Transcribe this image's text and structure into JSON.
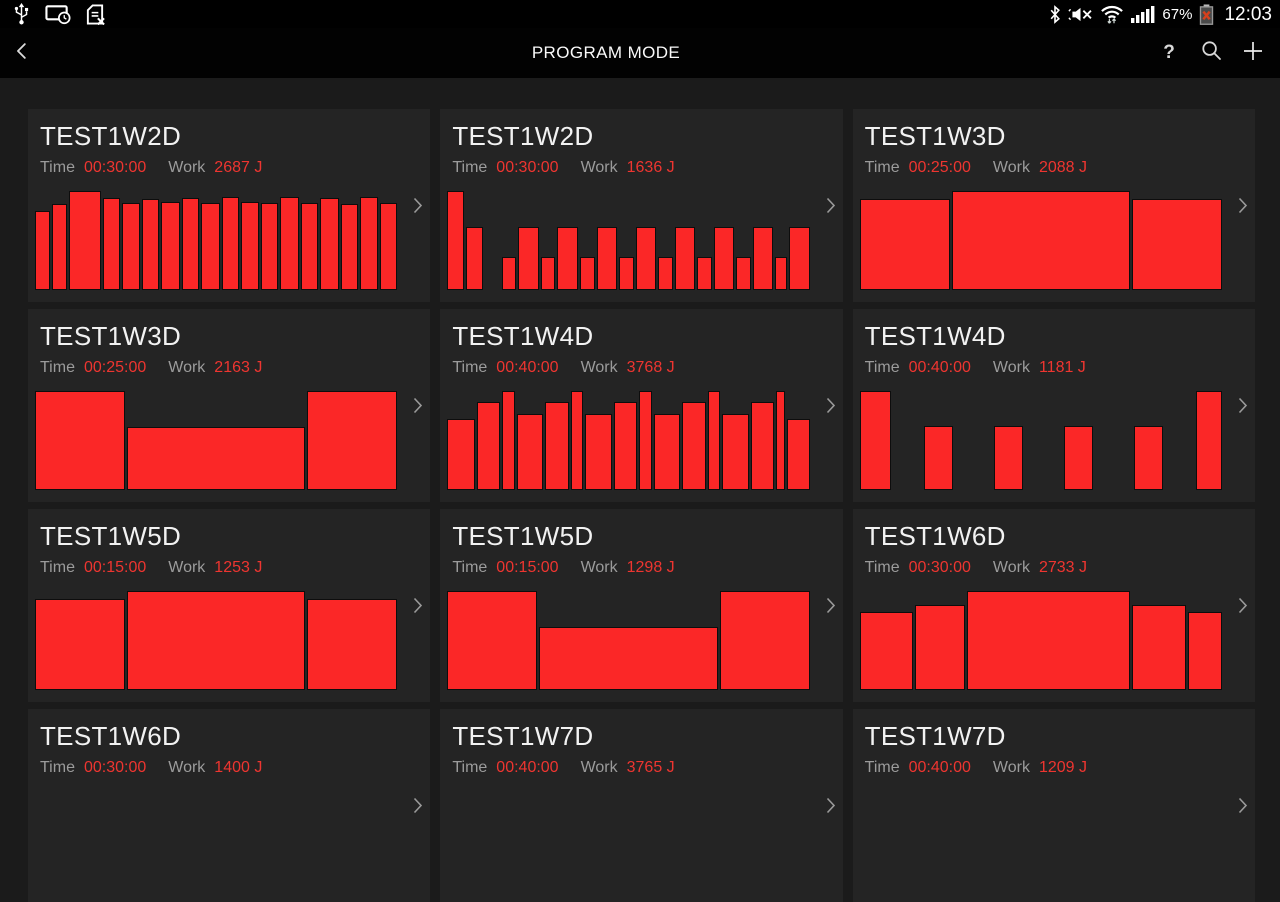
{
  "status_bar": {
    "left_icons": [
      "usb-icon",
      "screen-timeout-icon",
      "no-sim-icon"
    ],
    "right_icons": [
      "bluetooth-icon",
      "mute-icon",
      "wifi-icon",
      "signal-icon"
    ],
    "battery_percent": "67%",
    "battery_icon": "battery-error-icon",
    "time": "12:03"
  },
  "app_bar": {
    "title": "PROGRAM MODE",
    "back_icon": "back-chevron-icon",
    "help_label": "?",
    "action_icons": [
      "help-icon",
      "search-icon",
      "add-icon"
    ]
  },
  "labels": {
    "time": "Time",
    "work": "Work"
  },
  "colors": {
    "accent_red_text": "#ee3530",
    "bar_fill": "#fb2727",
    "bar_border": "#0d0d0d",
    "card_bg": "#242424",
    "page_bg": "#1b1b1b",
    "bar_black": "#000000",
    "label_gray": "#9b9b9b",
    "title_white": "#f2f2f2"
  },
  "chart_data": {
    "type": "bar",
    "note": "per-card interval bars stored in cards[].bars as [relative_width, relative_height 0-1]"
  },
  "cards": [
    {
      "title": "TEST1W2D",
      "time": "00:30:00",
      "work": "2687 J",
      "bars": [
        [
          16,
          0.8
        ],
        [
          15,
          0.87
        ],
        [
          36,
          1.0
        ],
        [
          18,
          0.93
        ],
        [
          20,
          0.88
        ],
        [
          18,
          0.92
        ],
        [
          20,
          0.89
        ],
        [
          18,
          0.93
        ],
        [
          20,
          0.88
        ],
        [
          18,
          0.94
        ],
        [
          20,
          0.89
        ],
        [
          18,
          0.88
        ],
        [
          20,
          0.94
        ],
        [
          18,
          0.88
        ],
        [
          20,
          0.93
        ],
        [
          18,
          0.87
        ],
        [
          20,
          0.94
        ],
        [
          18,
          0.88
        ]
      ]
    },
    {
      "title": "TEST1W2D",
      "time": "00:30:00",
      "work": "1636 J",
      "bars": [
        [
          17,
          1.0
        ],
        [
          18,
          0.64
        ],
        [
          18,
          0
        ],
        [
          15,
          0.33
        ],
        [
          22,
          0.64
        ],
        [
          15,
          0.33
        ],
        [
          22,
          0.64
        ],
        [
          15,
          0.33
        ],
        [
          22,
          0.64
        ],
        [
          15,
          0.33
        ],
        [
          22,
          0.64
        ],
        [
          15,
          0.33
        ],
        [
          22,
          0.64
        ],
        [
          15,
          0.33
        ],
        [
          22,
          0.64
        ],
        [
          15,
          0.33
        ],
        [
          22,
          0.64
        ],
        [
          12,
          0.33
        ],
        [
          22,
          0.64
        ]
      ]
    },
    {
      "title": "TEST1W3D",
      "time": "00:25:00",
      "work": "2088 J",
      "bars": [
        [
          25,
          0.92
        ],
        [
          50,
          1.0
        ],
        [
          25,
          0.92
        ]
      ]
    },
    {
      "title": "TEST1W3D",
      "time": "00:25:00",
      "work": "2163 J",
      "bars": [
        [
          25,
          1.0
        ],
        [
          50,
          0.64
        ],
        [
          25,
          1.0
        ]
      ]
    },
    {
      "title": "TEST1W4D",
      "time": "00:40:00",
      "work": "3768 J",
      "bars": [
        [
          30,
          0.72
        ],
        [
          25,
          0.89
        ],
        [
          12,
          1.0
        ],
        [
          29,
          0.77
        ],
        [
          25,
          0.89
        ],
        [
          12,
          1.0
        ],
        [
          29,
          0.77
        ],
        [
          25,
          0.89
        ],
        [
          12,
          1.0
        ],
        [
          29,
          0.77
        ],
        [
          25,
          0.89
        ],
        [
          12,
          1.0
        ],
        [
          29,
          0.77
        ],
        [
          25,
          0.89
        ],
        [
          8,
          1.0
        ],
        [
          24,
          0.72
        ]
      ]
    },
    {
      "title": "TEST1W4D",
      "time": "00:40:00",
      "work": "1181 J",
      "bars": [
        [
          11,
          1.0
        ],
        [
          11,
          0
        ],
        [
          10,
          0.65
        ],
        [
          14,
          0
        ],
        [
          10,
          0.65
        ],
        [
          14,
          0
        ],
        [
          10,
          0.65
        ],
        [
          14,
          0
        ],
        [
          10,
          0.65
        ],
        [
          11,
          0
        ],
        [
          9,
          1.0
        ]
      ]
    },
    {
      "title": "TEST1W5D",
      "time": "00:15:00",
      "work": "1253 J",
      "bars": [
        [
          25,
          0.92
        ],
        [
          50,
          1.0
        ],
        [
          25,
          0.92
        ]
      ]
    },
    {
      "title": "TEST1W5D",
      "time": "00:15:00",
      "work": "1298 J",
      "bars": [
        [
          25,
          1.0
        ],
        [
          50,
          0.64
        ],
        [
          25,
          1.0
        ]
      ]
    },
    {
      "title": "TEST1W6D",
      "time": "00:30:00",
      "work": "2733 J",
      "bars": [
        [
          16,
          0.79
        ],
        [
          15,
          0.86
        ],
        [
          50,
          1.0
        ],
        [
          16,
          0.86
        ],
        [
          10,
          0.79
        ]
      ]
    },
    {
      "title": "TEST1W6D",
      "time": "00:30:00",
      "work": "1400 J",
      "bars": []
    },
    {
      "title": "TEST1W7D",
      "time": "00:40:00",
      "work": "3765 J",
      "bars": []
    },
    {
      "title": "TEST1W7D",
      "time": "00:40:00",
      "work": "1209 J",
      "bars": []
    }
  ]
}
